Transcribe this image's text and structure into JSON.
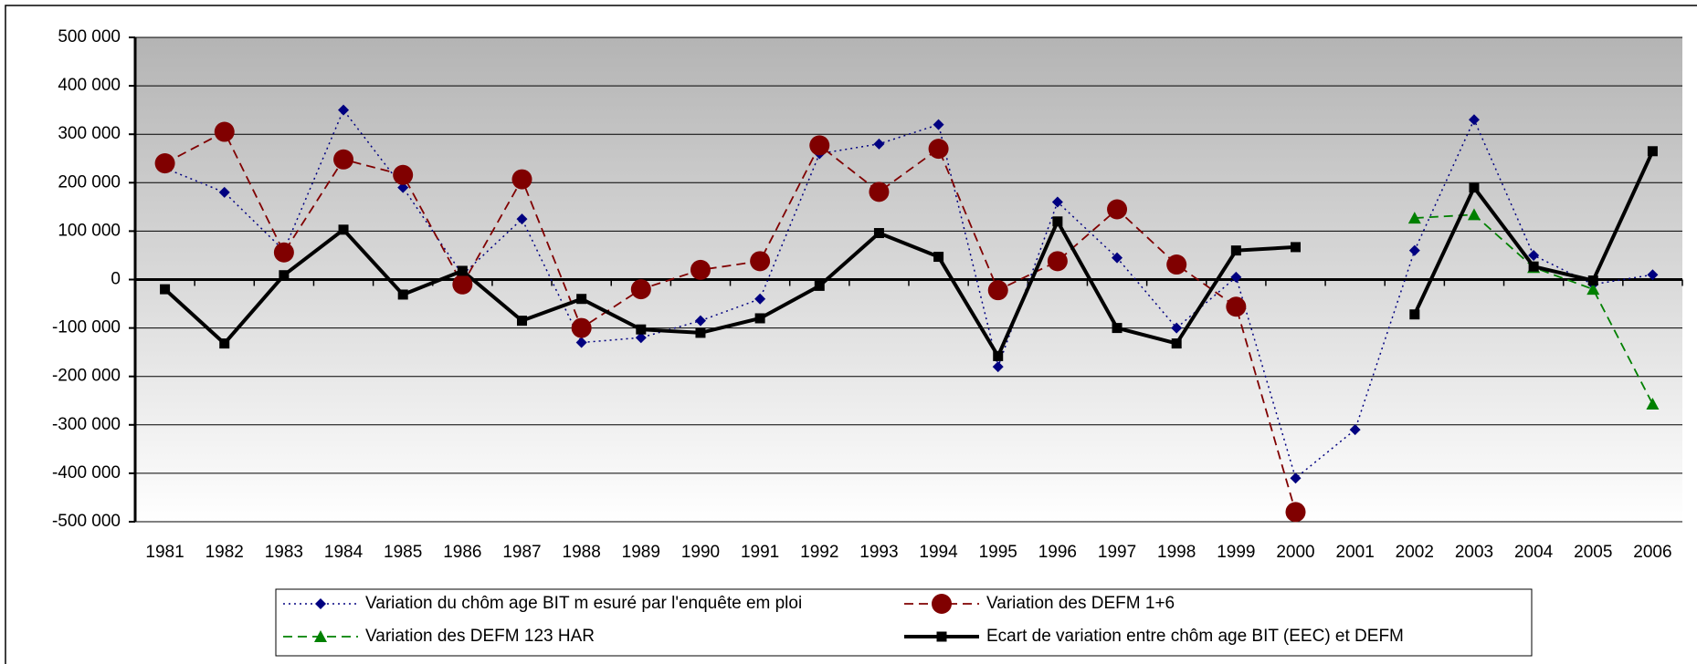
{
  "chart_data": {
    "type": "line",
    "categories": [
      "1981",
      "1982",
      "1983",
      "1984",
      "1985",
      "1986",
      "1987",
      "1988",
      "1989",
      "1990",
      "1991",
      "1992",
      "1993",
      "1994",
      "1995",
      "1996",
      "1997",
      "1998",
      "1999",
      "2000",
      "2001",
      "2002",
      "2003",
      "2004",
      "2005",
      "2006"
    ],
    "series": [
      {
        "name": "Variation du chôm age BIT m esuré par l'enquête em ploi",
        "color": "#000080",
        "marker": "diamond",
        "line_style": "dotted",
        "values": [
          230000,
          180000,
          60000,
          350000,
          190000,
          10000,
          125000,
          -130000,
          -120000,
          -85000,
          -40000,
          260000,
          280000,
          320000,
          -180000,
          160000,
          45000,
          -100000,
          5000,
          -410000,
          -310000,
          60000,
          330000,
          50000,
          -10000,
          10000
        ]
      },
      {
        "name": "Variation des DEFM 1+6",
        "color": "#800000",
        "marker": "circle",
        "line_style": "dashed",
        "values": [
          240000,
          305000,
          56000,
          248000,
          216000,
          -10000,
          207000,
          -100000,
          -20000,
          20000,
          38000,
          277000,
          181000,
          270000,
          -22000,
          38000,
          145000,
          31000,
          -56000,
          -480000,
          null,
          null,
          null,
          null,
          null,
          null
        ]
      },
      {
        "name": "Variation des DEFM 123 HAR",
        "color": "#008000",
        "marker": "triangle",
        "line_style": "dashed",
        "values": [
          null,
          null,
          null,
          null,
          null,
          null,
          null,
          null,
          null,
          null,
          null,
          null,
          null,
          null,
          null,
          null,
          null,
          null,
          null,
          null,
          null,
          127000,
          134000,
          25000,
          -20000,
          -257000
        ]
      },
      {
        "name": "Ecart de variation entre chôm age BIT (EEC) et DEFM",
        "color": "#000000",
        "marker": "square",
        "line_style": "solid",
        "values": [
          -20000,
          -132000,
          9000,
          103000,
          -31000,
          18000,
          -85000,
          -40000,
          -103000,
          -110000,
          -80000,
          -13000,
          96000,
          47000,
          -158000,
          120000,
          -100000,
          -132000,
          60000,
          67000,
          null,
          -72000,
          190000,
          27000,
          -2000,
          265000
        ]
      }
    ],
    "ylim": [
      -500000,
      500000
    ],
    "yticks": [
      {
        "value": -500000,
        "label": "-500 000"
      },
      {
        "value": -400000,
        "label": "-400 000"
      },
      {
        "value": -300000,
        "label": "-300 000"
      },
      {
        "value": -200000,
        "label": "-200 000"
      },
      {
        "value": -100000,
        "label": "-100 000"
      },
      0,
      {
        "value": 100000,
        "label": "100 000"
      },
      {
        "value": 200000,
        "label": "200 000"
      },
      {
        "value": 300000,
        "label": "300 000"
      },
      {
        "value": 400000,
        "label": "400 000"
      },
      {
        "value": 500000,
        "label": "500 000"
      }
    ],
    "grid": true,
    "legend": "bottom"
  }
}
